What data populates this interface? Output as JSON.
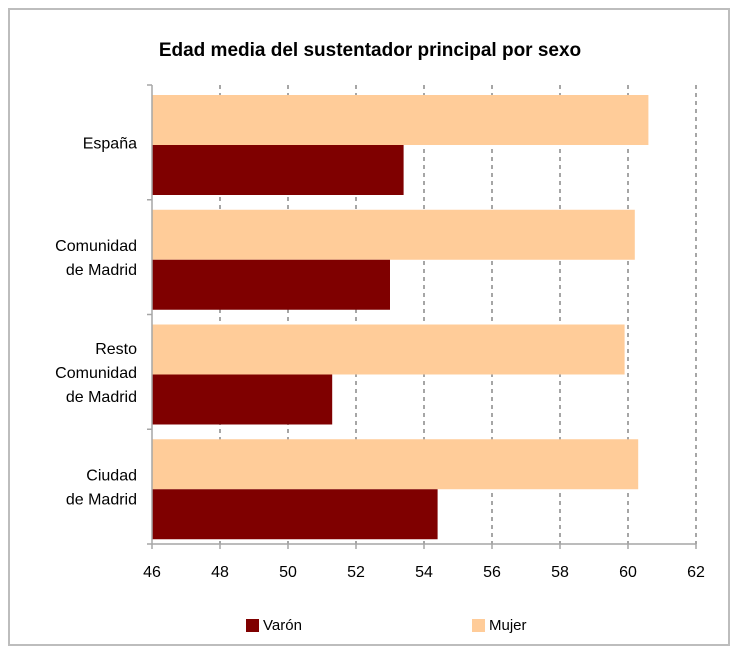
{
  "chart_data": {
    "type": "bar",
    "orientation": "horizontal",
    "title": "Edad media del sustentador principal por sexo",
    "categories": [
      [
        "España"
      ],
      [
        "Comunidad",
        "de Madrid"
      ],
      [
        "Resto",
        "Comunidad",
        "de Madrid"
      ],
      [
        "Ciudad",
        "de Madrid"
      ]
    ],
    "series": [
      {
        "name": "Varón",
        "color": "#7f0000",
        "values": [
          53.4,
          53.0,
          51.3,
          54.4
        ]
      },
      {
        "name": "Mujer",
        "color": "#ffcc99",
        "values": [
          60.6,
          60.2,
          59.9,
          60.3
        ]
      }
    ],
    "xlim": [
      46,
      62
    ],
    "xticks": [
      46,
      48,
      50,
      52,
      54,
      56,
      58,
      60,
      62
    ],
    "grid": "vertical-dashed",
    "legend_position": "bottom"
  }
}
